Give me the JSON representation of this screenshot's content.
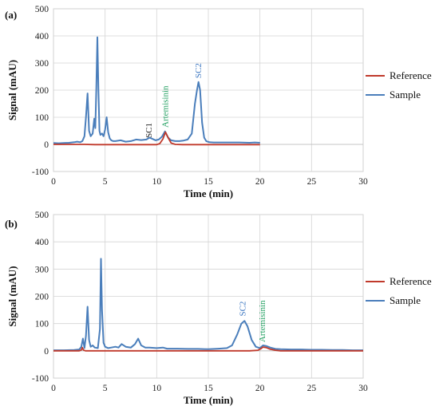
{
  "chart_data": [
    {
      "type": "line",
      "panel_label": "(a)",
      "xlabel": "Time (min)",
      "ylabel": "Signal (mAU)",
      "xlim": [
        0,
        30
      ],
      "ylim": [
        -100,
        500
      ],
      "xticks": [
        "0",
        "5",
        "10",
        "15",
        "20",
        "25",
        "30"
      ],
      "yticks": [
        "-100",
        "0",
        "100",
        "200",
        "300",
        "400",
        "500"
      ],
      "grid": true,
      "legend_position": "right",
      "series": [
        {
          "name": "Reference",
          "color": "#c0392b",
          "x": [
            0,
            1,
            2,
            3,
            4,
            5,
            6,
            7,
            8,
            9,
            10,
            10.3,
            10.6,
            10.85,
            11.1,
            11.4,
            11.8,
            12.5,
            13,
            14,
            15,
            16,
            17,
            18,
            19,
            20
          ],
          "y": [
            0,
            0,
            0,
            0,
            -1,
            -1,
            -1,
            -1,
            -1,
            -1,
            -1,
            3,
            20,
            45,
            25,
            5,
            0,
            -1,
            -1,
            -1,
            -1,
            -1,
            -1,
            -1,
            -1,
            -1
          ]
        },
        {
          "name": "Sample",
          "color": "#4a7ebb",
          "x": [
            0,
            0.5,
            1,
            1.5,
            2,
            2.3,
            2.6,
            2.8,
            3.0,
            3.15,
            3.3,
            3.45,
            3.6,
            3.8,
            3.95,
            4.05,
            4.15,
            4.25,
            4.35,
            4.45,
            4.55,
            4.7,
            4.85,
            5.0,
            5.15,
            5.3,
            5.45,
            5.6,
            5.8,
            6.0,
            6.5,
            7.0,
            7.5,
            8.0,
            8.5,
            9.0,
            9.3,
            9.6,
            9.9,
            10.2,
            10.5,
            10.8,
            11.1,
            11.4,
            11.8,
            12.2,
            12.6,
            13.0,
            13.4,
            13.7,
            13.9,
            14.05,
            14.2,
            14.4,
            14.6,
            14.8,
            15.1,
            15.5,
            16,
            17,
            18,
            19,
            19.5,
            20
          ],
          "y": [
            5,
            4,
            5,
            6,
            8,
            10,
            8,
            12,
            30,
            100,
            188,
            50,
            30,
            40,
            95,
            60,
            210,
            395,
            200,
            50,
            35,
            40,
            30,
            55,
            100,
            45,
            22,
            15,
            12,
            12,
            15,
            10,
            12,
            18,
            16,
            18,
            25,
            20,
            15,
            18,
            28,
            48,
            25,
            15,
            12,
            12,
            14,
            18,
            40,
            150,
            200,
            230,
            200,
            80,
            25,
            12,
            8,
            7,
            7,
            7,
            7,
            6,
            7,
            6
          ]
        }
      ],
      "annotations": [
        {
          "text": "SC1",
          "x": 9.3,
          "y": 12,
          "color": "#222222"
        },
        {
          "text": "Artemisinin",
          "x": 10.9,
          "y": 50,
          "color": "#1e9e5e"
        },
        {
          "text": "SC2",
          "x": 14.1,
          "y": 232,
          "color": "#3e78c2"
        }
      ]
    },
    {
      "type": "line",
      "panel_label": "(b)",
      "xlabel": "Time (min)",
      "ylabel": "Signal (mAU)",
      "xlim": [
        0,
        30
      ],
      "ylim": [
        -100,
        500
      ],
      "xticks": [
        "0",
        "5",
        "10",
        "15",
        "20",
        "25",
        "30"
      ],
      "yticks": [
        "-100",
        "0",
        "100",
        "200",
        "300",
        "400",
        "500"
      ],
      "grid": true,
      "legend_position": "right",
      "series": [
        {
          "name": "Reference",
          "color": "#c0392b",
          "x": [
            0,
            1,
            2,
            2.5,
            2.7,
            2.8,
            2.9,
            3.1,
            3.5,
            4,
            5,
            6,
            7,
            8,
            9,
            10,
            11,
            12,
            13,
            14,
            15,
            16,
            17,
            18,
            19,
            19.8,
            20.1,
            20.3,
            20.6,
            21.0,
            21.5,
            22,
            24,
            26,
            28,
            30
          ],
          "y": [
            0,
            0,
            0,
            0,
            3,
            12,
            3,
            0,
            0,
            0,
            0,
            0,
            0,
            0,
            0,
            0,
            0,
            0,
            0,
            0,
            0,
            0,
            0,
            0,
            0,
            2,
            8,
            14,
            12,
            6,
            2,
            0,
            0,
            0,
            0,
            0
          ]
        },
        {
          "name": "Sample",
          "color": "#4a7ebb",
          "x": [
            0,
            1,
            2,
            2.5,
            2.7,
            2.85,
            3.0,
            3.15,
            3.3,
            3.45,
            3.6,
            3.8,
            4.0,
            4.3,
            4.5,
            4.6,
            4.7,
            4.85,
            5.0,
            5.3,
            5.6,
            6.0,
            6.3,
            6.6,
            7.0,
            7.5,
            7.9,
            8.2,
            8.5,
            8.9,
            9.3,
            10.0,
            10.6,
            11.0,
            12,
            13,
            14,
            15,
            16,
            16.8,
            17.3,
            17.8,
            18.2,
            18.5,
            18.8,
            19.2,
            19.6,
            20.0,
            20.3,
            20.6,
            21.0,
            21.5,
            22,
            23,
            24,
            25,
            26,
            27,
            28,
            29,
            30
          ],
          "y": [
            2,
            2,
            3,
            5,
            15,
            45,
            10,
            55,
            162,
            40,
            15,
            20,
            12,
            10,
            80,
            338,
            150,
            30,
            15,
            10,
            12,
            15,
            12,
            25,
            15,
            12,
            25,
            45,
            20,
            12,
            12,
            10,
            12,
            8,
            8,
            7,
            7,
            6,
            8,
            10,
            20,
            60,
            100,
            110,
            90,
            40,
            15,
            10,
            20,
            18,
            12,
            7,
            6,
            5,
            5,
            4,
            4,
            3,
            3,
            2,
            2
          ]
        }
      ],
      "annotations": [
        {
          "text": "SC2",
          "x": 18.4,
          "y": 115,
          "color": "#3e78c2"
        },
        {
          "text": "Artemisinin",
          "x": 20.3,
          "y": 20,
          "color": "#1e9e5e"
        }
      ]
    }
  ]
}
